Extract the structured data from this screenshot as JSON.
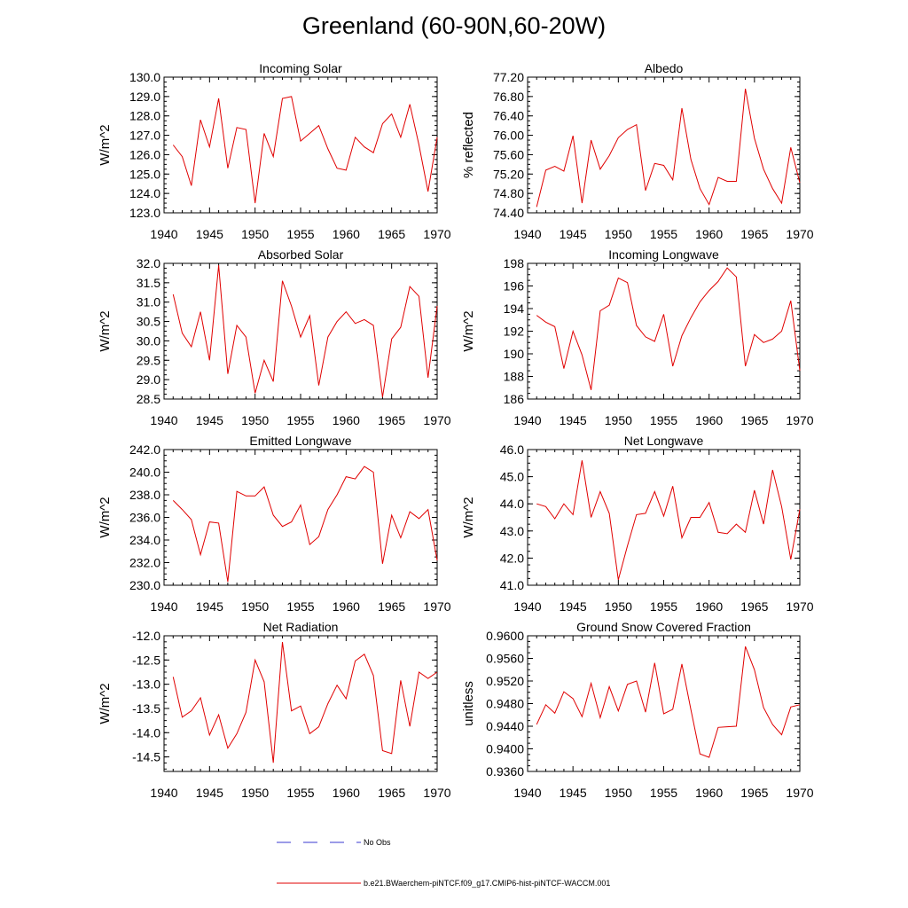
{
  "title": "Greenland (60-90N,60-20W)",
  "colors": {
    "model": "#e00000",
    "obs": "#3a3ad0",
    "axis": "#000000"
  },
  "legend": {
    "obs_label": "No Obs",
    "model_label": "b.e21.BWaerchem-piNTCF.f09_g17.CMIP6-hist-piNTCF-WACCM.001"
  },
  "chart_data": [
    {
      "type": "line",
      "title": "Incoming Solar",
      "ylabel": "W/m^2",
      "xlim": [
        1940,
        1970
      ],
      "ylim": [
        123.0,
        130.0
      ],
      "xticks": [
        "1940",
        "1945",
        "1950",
        "1955",
        "1960",
        "1965",
        "1970"
      ],
      "yticks": [
        "123.0",
        "124.0",
        "125.0",
        "126.0",
        "127.0",
        "128.0",
        "129.0",
        "130.0"
      ],
      "x": [
        1941,
        1942,
        1943,
        1944,
        1945,
        1946,
        1947,
        1948,
        1949,
        1950,
        1951,
        1952,
        1953,
        1954,
        1955,
        1956,
        1957,
        1958,
        1959,
        1960,
        1961,
        1962,
        1963,
        1964,
        1965,
        1966,
        1967,
        1968,
        1969,
        1970
      ],
      "values": [
        126.5,
        125.9,
        124.4,
        127.8,
        126.4,
        128.9,
        125.3,
        127.4,
        127.3,
        123.5,
        127.1,
        125.9,
        128.9,
        129.0,
        126.7,
        127.1,
        127.5,
        126.3,
        125.3,
        125.2,
        126.9,
        126.4,
        126.1,
        127.6,
        128.1,
        126.9,
        128.6,
        126.5,
        124.1,
        126.9
      ]
    },
    {
      "type": "line",
      "title": "Albedo",
      "ylabel": "% reflected",
      "xlim": [
        1940,
        1970
      ],
      "ylim": [
        74.4,
        77.2
      ],
      "xticks": [
        "1940",
        "1945",
        "1950",
        "1955",
        "1960",
        "1965",
        "1970"
      ],
      "yticks": [
        "74.40",
        "74.80",
        "75.20",
        "75.60",
        "76.00",
        "76.40",
        "76.80",
        "77.20"
      ],
      "x": [
        1941,
        1942,
        1943,
        1944,
        1945,
        1946,
        1947,
        1948,
        1949,
        1950,
        1951,
        1952,
        1953,
        1954,
        1955,
        1956,
        1957,
        1958,
        1959,
        1960,
        1961,
        1962,
        1963,
        1964,
        1965,
        1966,
        1967,
        1968,
        1969,
        1970
      ],
      "values": [
        74.52,
        75.28,
        75.36,
        75.26,
        75.99,
        74.6,
        75.9,
        75.3,
        75.58,
        75.95,
        76.12,
        76.22,
        74.86,
        75.42,
        75.38,
        75.08,
        76.56,
        75.5,
        74.9,
        74.57,
        75.13,
        75.05,
        75.05,
        76.96,
        75.94,
        75.3,
        74.9,
        74.6,
        75.75,
        75.02
      ]
    },
    {
      "type": "line",
      "title": "Absorbed Solar",
      "ylabel": "W/m^2",
      "xlim": [
        1940,
        1970
      ],
      "ylim": [
        28.5,
        32.0
      ],
      "xticks": [
        "1940",
        "1945",
        "1950",
        "1955",
        "1960",
        "1965",
        "1970"
      ],
      "yticks": [
        "28.5",
        "29.0",
        "29.5",
        "30.0",
        "30.5",
        "31.0",
        "31.5",
        "32.0"
      ],
      "x": [
        1941,
        1942,
        1943,
        1944,
        1945,
        1946,
        1947,
        1948,
        1949,
        1950,
        1951,
        1952,
        1953,
        1954,
        1955,
        1956,
        1957,
        1958,
        1959,
        1960,
        1961,
        1962,
        1963,
        1964,
        1965,
        1966,
        1967,
        1968,
        1969,
        1970
      ],
      "values": [
        31.2,
        30.2,
        29.85,
        30.75,
        29.5,
        31.95,
        29.15,
        30.4,
        30.1,
        28.65,
        29.5,
        28.95,
        31.55,
        30.9,
        30.1,
        30.65,
        28.85,
        30.1,
        30.5,
        30.75,
        30.45,
        30.55,
        30.4,
        28.55,
        30.05,
        30.35,
        31.4,
        31.15,
        29.05,
        30.9
      ]
    },
    {
      "type": "line",
      "title": "Incoming Longwave",
      "ylabel": "W/m^2",
      "xlim": [
        1940,
        1970
      ],
      "ylim": [
        186,
        198
      ],
      "xticks": [
        "1940",
        "1945",
        "1950",
        "1955",
        "1960",
        "1965",
        "1970"
      ],
      "yticks": [
        "186",
        "188",
        "190",
        "192",
        "194",
        "196",
        "198"
      ],
      "x": [
        1941,
        1942,
        1943,
        1944,
        1945,
        1946,
        1947,
        1948,
        1949,
        1950,
        1951,
        1952,
        1953,
        1954,
        1955,
        1956,
        1957,
        1958,
        1959,
        1960,
        1961,
        1962,
        1963,
        1964,
        1965,
        1966,
        1967,
        1968,
        1969,
        1970
      ],
      "values": [
        193.4,
        192.8,
        192.4,
        188.7,
        192.0,
        189.9,
        186.8,
        193.8,
        194.3,
        196.7,
        196.3,
        192.5,
        191.5,
        191.1,
        193.5,
        188.9,
        191.6,
        193.2,
        194.6,
        195.6,
        196.4,
        197.6,
        196.8,
        188.9,
        191.7,
        191.0,
        191.3,
        192.0,
        194.7,
        188.5
      ]
    },
    {
      "type": "line",
      "title": "Emitted Longwave",
      "ylabel": "W/m^2",
      "xlim": [
        1940,
        1970
      ],
      "ylim": [
        230.0,
        242.0
      ],
      "xticks": [
        "1940",
        "1945",
        "1950",
        "1955",
        "1960",
        "1965",
        "1970"
      ],
      "yticks": [
        "230.0",
        "232.0",
        "234.0",
        "236.0",
        "238.0",
        "240.0",
        "242.0"
      ],
      "x": [
        1941,
        1942,
        1943,
        1944,
        1945,
        1946,
        1947,
        1948,
        1949,
        1950,
        1951,
        1952,
        1953,
        1954,
        1955,
        1956,
        1957,
        1958,
        1959,
        1960,
        1961,
        1962,
        1963,
        1964,
        1965,
        1966,
        1967,
        1968,
        1969,
        1970
      ],
      "values": [
        237.5,
        236.7,
        235.8,
        232.7,
        235.6,
        235.5,
        230.3,
        238.3,
        237.9,
        237.9,
        238.7,
        236.2,
        235.2,
        235.6,
        237.1,
        233.6,
        234.3,
        236.7,
        238.0,
        239.6,
        239.4,
        240.5,
        240.0,
        231.9,
        236.2,
        234.2,
        236.5,
        235.9,
        236.7,
        232.2
      ]
    },
    {
      "type": "line",
      "title": "Net Longwave",
      "ylabel": "W/m^2",
      "xlim": [
        1940,
        1970
      ],
      "ylim": [
        41.0,
        46.0
      ],
      "xticks": [
        "1940",
        "1945",
        "1950",
        "1955",
        "1960",
        "1965",
        "1970"
      ],
      "yticks": [
        "41.0",
        "42.0",
        "43.0",
        "44.0",
        "45.0",
        "46.0"
      ],
      "x": [
        1941,
        1942,
        1943,
        1944,
        1945,
        1946,
        1947,
        1948,
        1949,
        1950,
        1951,
        1952,
        1953,
        1954,
        1955,
        1956,
        1957,
        1958,
        1959,
        1960,
        1961,
        1962,
        1963,
        1964,
        1965,
        1966,
        1967,
        1968,
        1969,
        1970
      ],
      "values": [
        44.0,
        43.9,
        43.45,
        44.0,
        43.6,
        45.6,
        43.5,
        44.45,
        43.65,
        41.2,
        42.45,
        43.6,
        43.65,
        44.45,
        43.55,
        44.65,
        42.75,
        43.5,
        43.5,
        44.05,
        42.95,
        42.9,
        43.25,
        42.95,
        44.5,
        43.25,
        45.25,
        43.9,
        41.95,
        43.8
      ]
    },
    {
      "type": "line",
      "title": "Net Radiation",
      "ylabel": "W/m^2",
      "xlim": [
        1940,
        1970
      ],
      "ylim": [
        -14.8,
        -12.0
      ],
      "xticks": [
        "1940",
        "1945",
        "1950",
        "1955",
        "1960",
        "1965",
        "1970"
      ],
      "yticks": [
        "-14.5",
        "-14.0",
        "-13.5",
        "-13.0",
        "-12.5",
        "-12.0"
      ],
      "x": [
        1941,
        1942,
        1943,
        1944,
        1945,
        1946,
        1947,
        1948,
        1949,
        1950,
        1951,
        1952,
        1953,
        1954,
        1955,
        1956,
        1957,
        1958,
        1959,
        1960,
        1961,
        1962,
        1963,
        1964,
        1965,
        1966,
        1967,
        1968,
        1969,
        1970
      ],
      "values": [
        -12.85,
        -13.68,
        -13.55,
        -13.28,
        -14.05,
        -13.63,
        -14.32,
        -14.02,
        -13.58,
        -12.5,
        -12.95,
        -14.62,
        -12.13,
        -13.55,
        -13.45,
        -14.02,
        -13.88,
        -13.4,
        -13.02,
        -13.3,
        -12.52,
        -12.38,
        -12.82,
        -14.37,
        -14.43,
        -12.92,
        -13.87,
        -12.75,
        -12.88,
        -12.75
      ]
    },
    {
      "type": "line",
      "title": "Ground Snow Covered Fraction",
      "ylabel": "unitless",
      "xlim": [
        1940,
        1970
      ],
      "ylim": [
        0.936,
        0.96
      ],
      "xticks": [
        "1940",
        "1945",
        "1950",
        "1955",
        "1960",
        "1965",
        "1970"
      ],
      "yticks": [
        "0.9360",
        "0.9400",
        "0.9440",
        "0.9480",
        "0.9520",
        "0.9560",
        "0.9600"
      ],
      "x": [
        1941,
        1942,
        1943,
        1944,
        1945,
        1946,
        1947,
        1948,
        1949,
        1950,
        1951,
        1952,
        1953,
        1954,
        1955,
        1956,
        1957,
        1958,
        1959,
        1960,
        1961,
        1962,
        1963,
        1964,
        1965,
        1966,
        1967,
        1968,
        1969,
        1970
      ],
      "values": [
        0.9443,
        0.9478,
        0.9463,
        0.9501,
        0.9489,
        0.9457,
        0.9516,
        0.9455,
        0.951,
        0.9467,
        0.9514,
        0.952,
        0.9465,
        0.9552,
        0.9462,
        0.947,
        0.955,
        0.9469,
        0.9391,
        0.9385,
        0.9438,
        0.9439,
        0.944,
        0.9581,
        0.954,
        0.9473,
        0.9443,
        0.9425,
        0.9474,
        0.9478
      ]
    }
  ]
}
